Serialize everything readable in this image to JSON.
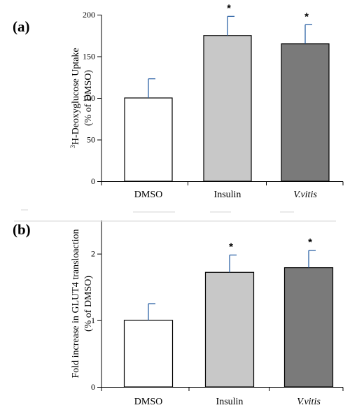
{
  "chart_data": [
    {
      "type": "bar",
      "panel_label": "(a)",
      "ylabel_lines": [
        "3H-Deoxyglucose Uptake",
        "(% of DMSO)"
      ],
      "categories": [
        "DMSO",
        "Insulin",
        "V.vitis"
      ],
      "values": [
        100,
        175,
        165
      ],
      "errors": [
        23,
        23,
        23
      ],
      "significance": [
        "",
        "*",
        "*"
      ],
      "ylim": [
        0,
        200
      ],
      "yticks": [
        0,
        50,
        100,
        150,
        200
      ],
      "ytick_labels": [
        "0",
        "50",
        "100",
        "150",
        "200"
      ],
      "bar_colors": [
        "#ffffff",
        "#c8c8c8",
        "#7a7a7a"
      ],
      "error_bar_color": "#2e63a6",
      "grid": false,
      "legend": "none"
    },
    {
      "type": "bar",
      "panel_label": "(b)",
      "ylabel_lines": [
        "Fold increase in GLUT4 transloaction",
        "(% of DMSO)"
      ],
      "categories": [
        "DMSO",
        "Insulin",
        "V.vitis"
      ],
      "values": [
        1.0,
        1.72,
        1.79
      ],
      "errors": [
        0.25,
        0.26,
        0.26
      ],
      "significance": [
        "",
        "*",
        "*"
      ],
      "ylim": [
        0,
        2.5
      ],
      "yticks": [
        0,
        1,
        2
      ],
      "ytick_labels": [
        "0",
        "1",
        "2"
      ],
      "bar_colors": [
        "#ffffff",
        "#c8c8c8",
        "#7a7a7a"
      ],
      "error_bar_color": "#2e63a6",
      "grid": false,
      "legend": "none"
    }
  ]
}
